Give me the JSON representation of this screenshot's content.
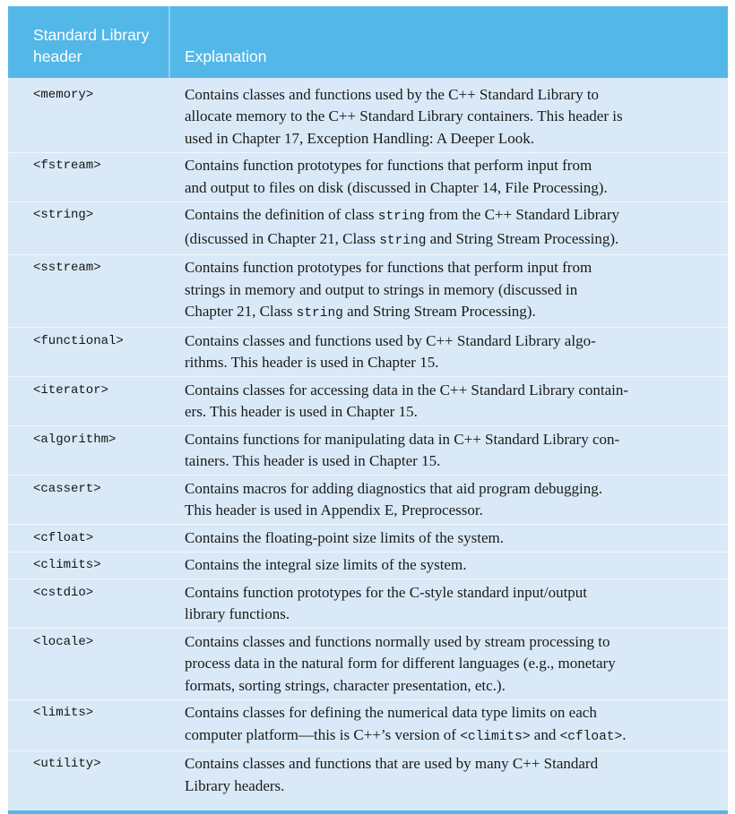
{
  "table": {
    "colors": {
      "header_bg": "#53B7E8",
      "body_bg": "#D9E9F7",
      "header_text": "#FFFFFF",
      "body_text": "#1A1A1A",
      "bottom_rule": "#53B7E8",
      "row_separator": "rgba(255,255,255,0.65)"
    },
    "columns": [
      {
        "label": "Standard Library header",
        "lines": [
          "Standard Library",
          "header"
        ]
      },
      {
        "label": "Explanation"
      }
    ],
    "rows": [
      {
        "header": "<memory>",
        "lines": [
          [
            {
              "text": "Contains classes and functions used by the C++ Standard Library to"
            }
          ],
          [
            {
              "text": "allocate memory to the C++ Standard Library containers. This header is"
            }
          ],
          [
            {
              "text": "used in Chapter 17, Exception Handling: A Deeper Look."
            }
          ]
        ]
      },
      {
        "header": "<fstream>",
        "lines": [
          [
            {
              "text": "Contains function prototypes for functions that perform input from"
            }
          ],
          [
            {
              "text": "and output to files on disk (discussed in Chapter 14, File Processing)."
            }
          ]
        ]
      },
      {
        "header": "<string>",
        "lines": [
          [
            {
              "text": "Contains the definition of class "
            },
            {
              "text": "string",
              "code": true
            },
            {
              "text": " from the C++ Standard Library"
            }
          ],
          [
            {
              "text": "(discussed in Chapter 21, Class "
            },
            {
              "text": "string",
              "code": true
            },
            {
              "text": " and String Stream Processing)."
            }
          ]
        ]
      },
      {
        "header": "<sstream>",
        "lines": [
          [
            {
              "text": "Contains function prototypes for functions that perform input from"
            }
          ],
          [
            {
              "text": "strings in memory and output to strings in memory (discussed in"
            }
          ],
          [
            {
              "text": "Chapter 21, Class "
            },
            {
              "text": "string",
              "code": true
            },
            {
              "text": " and String Stream Processing)."
            }
          ]
        ]
      },
      {
        "header": "<functional>",
        "lines": [
          [
            {
              "text": "Contains classes and functions used by C++ Standard Library algo-"
            }
          ],
          [
            {
              "text": "rithms. This header is used in Chapter 15."
            }
          ]
        ]
      },
      {
        "header": "<iterator>",
        "lines": [
          [
            {
              "text": "Contains classes for accessing data in the C++ Standard Library contain-"
            }
          ],
          [
            {
              "text": "ers. This header is used in Chapter 15."
            }
          ]
        ]
      },
      {
        "header": "<algorithm>",
        "lines": [
          [
            {
              "text": "Contains functions for manipulating data in C++ Standard Library con-"
            }
          ],
          [
            {
              "text": "tainers. This header is used in Chapter 15."
            }
          ]
        ]
      },
      {
        "header": "<cassert>",
        "lines": [
          [
            {
              "text": "Contains macros for adding diagnostics that aid program debugging."
            }
          ],
          [
            {
              "text": "This header is used in Appendix E, Preprocessor."
            }
          ]
        ]
      },
      {
        "header": "<cfloat>",
        "lines": [
          [
            {
              "text": "Contains the floating-point size limits of the system."
            }
          ]
        ]
      },
      {
        "header": "<climits>",
        "lines": [
          [
            {
              "text": "Contains the integral size limits of the system."
            }
          ]
        ]
      },
      {
        "header": "<cstdio>",
        "lines": [
          [
            {
              "text": "Contains function prototypes for the C-style standard input/output"
            }
          ],
          [
            {
              "text": "library functions."
            }
          ]
        ]
      },
      {
        "header": "<locale>",
        "lines": [
          [
            {
              "text": "Contains classes and functions normally used by stream processing to"
            }
          ],
          [
            {
              "text": "process data in the natural form for different languages (e.g., monetary"
            }
          ],
          [
            {
              "text": "formats, sorting strings, character presentation, etc.)."
            }
          ]
        ]
      },
      {
        "header": "<limits>",
        "lines": [
          [
            {
              "text": "Contains classes for defining the numerical data type limits on each"
            }
          ],
          [
            {
              "text": "computer platform—this is C++’s version of "
            },
            {
              "text": "<climits>",
              "code": true
            },
            {
              "text": " and "
            },
            {
              "text": "<cfloat>",
              "code": true
            },
            {
              "text": "."
            }
          ]
        ]
      },
      {
        "header": "<utility>",
        "lines": [
          [
            {
              "text": "Contains classes and functions that are used by many C++ Standard"
            }
          ],
          [
            {
              "text": "Library headers."
            }
          ]
        ]
      }
    ]
  }
}
